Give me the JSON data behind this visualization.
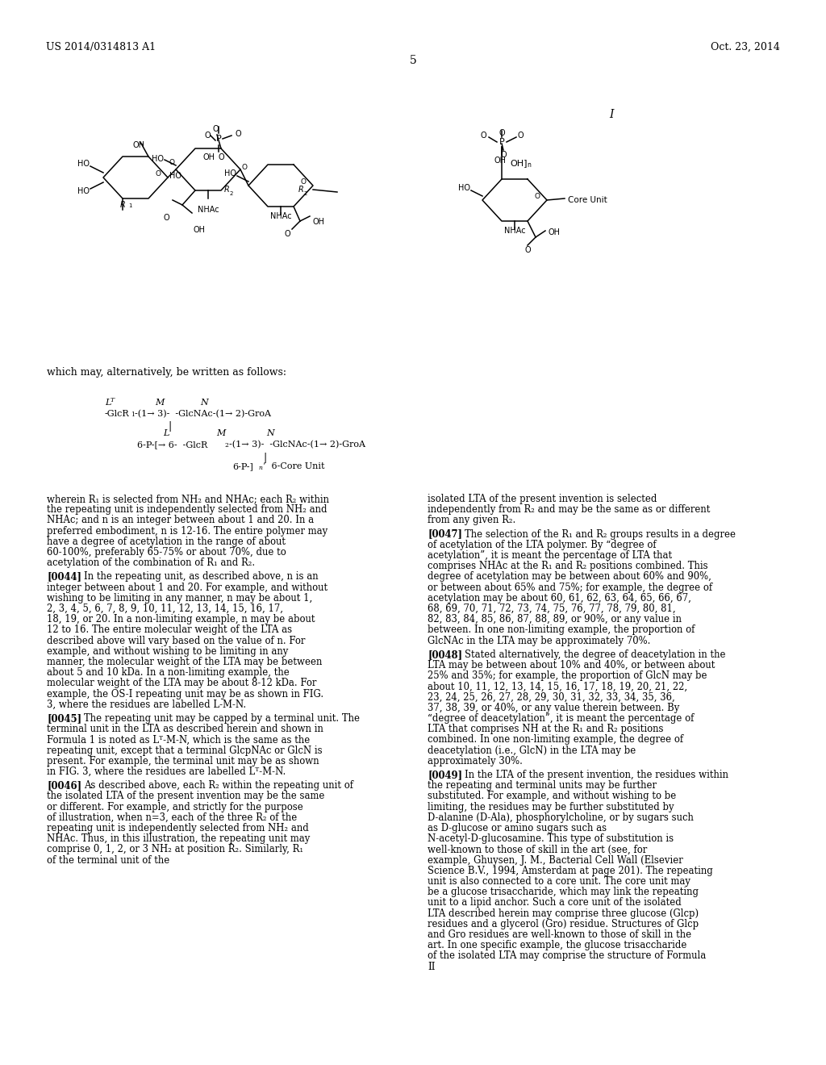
{
  "bg_color": "#ffffff",
  "header_left": "US 2014/0314813 A1",
  "header_right": "Oct. 23, 2014",
  "page_number": "5",
  "which_may_text": "which may, alternatively, be written as follows:",
  "wherein_text": "wherein R₁ is selected from NH₂ and NHAc; each R₂ within the repeating unit is independently selected from NH₂ and NHAc; and n is an integer between about 1 and 20. In a preferred embodiment, n is 12-16. The entire polymer may have a degree of acetylation in the range of about 60-100%, preferably 65-75% or about 70%, due to acetylation of the combination of R₁ and R₂.",
  "p0044_label": "[0044]",
  "p0044": "In the repeating unit, as described above, n is an integer between about 1 and 20. For example, and without wishing to be limiting in any manner, n may be about 1, 2, 3, 4, 5, 6, 7, 8, 9, 10, 11, 12, 13, 14, 15, 16, 17, 18, 19, or 20. In a non-limiting example, n may be about 12 to 16. The entire molecular weight of the LTA as described above will vary based on the value of n. For example, and without wishing to be limiting in any manner, the molecular weight of the LTA may be between about 5 and 10 kDa. In a non-limiting example, the molecular weight of the LTA may be about 8-12 kDa. For example, the OS-I repeating unit may be as shown in FIG. 3, where the residues are labelled L-M-N.",
  "p0045_label": "[0045]",
  "p0045": "The repeating unit may be capped by a terminal unit. The terminal unit in the LTA as described herein and shown in Formula 1 is noted as Lᵀ-M-N, which is the same as the repeating unit, except that a terminal GlcpNAc or GlcN is present. For example, the terminal unit may be as shown in FIG. 3, where the residues are labelled Lᵀ-M-N.",
  "p0046_label": "[0046]",
  "p0046": "As described above, each R₂ within the repeating unit of the isolated LTA of the present invention may be the same or different. For example, and strictly for the purpose of illustration, when n=3, each of the three R₂ of the repeating unit is independently selected from NH₂ and NHAc. Thus, in this illustration, the repeating unit may comprise 0, 1, 2, or 3 NH₂ at position R₂. Similarly, R₁ of the terminal unit of the",
  "right_top": "isolated LTA of the present invention is selected independently from R₂ and may be the same as or different from any given R₂.",
  "p0047_label": "[0047]",
  "p0047": "The selection of the R₁ and R₂ groups results in a degree of acetylation of the LTA polymer. By “degree of acetylation”, it is meant the percentage of LTA that comprises NHAc at the R₁ and R₂ positions combined. This degree of acetylation may be between about 60% and 90%, or between about 65% and 75%; for example, the degree of acetylation may be about 60, 61, 62, 63, 64, 65, 66, 67, 68, 69, 70, 71, 72, 73, 74, 75, 76, 77, 78, 79, 80, 81, 82, 83, 84, 85, 86, 87, 88, 89, or 90%, or any value in between. In one non-limiting example, the proportion of GlcNAc in the LTA may be approximately 70%.",
  "p0048_label": "[0048]",
  "p0048": "Stated alternatively, the degree of deacetylation in the LTA may be between about 10% and 40%, or between about 25% and 35%; for example, the proportion of GlcN may be about 10, 11, 12, 13, 14, 15, 16, 17, 18, 19, 20, 21, 22, 23, 24, 25, 26, 27, 28, 29, 30, 31, 32, 33, 34, 35, 36, 37, 38, 39, or 40%, or any value therein between. By “degree of deacetylation”, it is meant the percentage of LTA that comprises NH at the R₁ and R₂ positions combined. In one non-limiting example, the degree of deacetylation (i.e., GlcN) in the LTA may be approximately 30%.",
  "p0049_label": "[0049]",
  "p0049": "In the LTA of the present invention, the residues within the repeating and terminal units may be further substituted. For example, and without wishing to be limiting, the residues may be further substituted by D-alanine (D-Ala), phosphorylcholine, or by sugars such as D-glucose or amino sugars such as N-acetyl-D-glucosamine. This type of substitution is well-known to those of skill in the art (see, for example, Ghuysen, J. M., Bacterial Cell Wall (Elsevier Science B.V., 1994, Amsterdam at page 201). The repeating unit is also connected to a core unit. The core unit may be a glucose trisaccharide, which may link the repeating unit to a lipid anchor. Such a core unit of the isolated LTA described herein may comprise three glucose (Glcp) residues and a glycerol (Gro) residue. Structures of Glcp and Gro residues are well-known to those of skill in the art. In one specific example, the glucose trisaccharide of the isolated LTA may comprise the structure of Formula II"
}
